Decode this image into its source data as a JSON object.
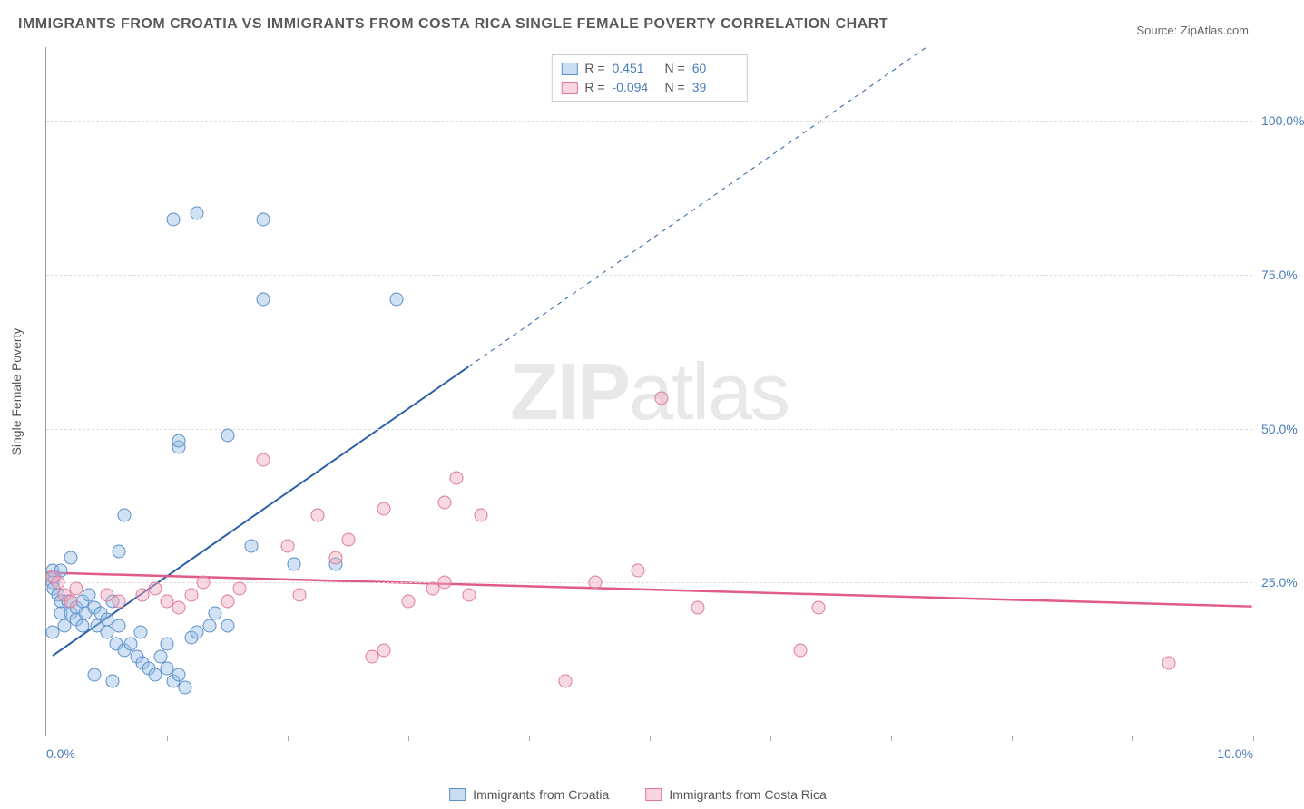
{
  "title": "IMMIGRANTS FROM CROATIA VS IMMIGRANTS FROM COSTA RICA SINGLE FEMALE POVERTY CORRELATION CHART",
  "source": "Source: ZipAtlas.com",
  "ylabel": "Single Female Poverty",
  "watermark_a": "ZIP",
  "watermark_b": "atlas",
  "chart": {
    "type": "scatter",
    "xlim": [
      0,
      10
    ],
    "ylim": [
      0,
      112
    ],
    "yticks": [
      25,
      50,
      75,
      100
    ],
    "ytick_labels": [
      "25.0%",
      "50.0%",
      "75.0%",
      "100.0%"
    ],
    "xticks": [
      0,
      10
    ],
    "xtick_labels": [
      "0.0%",
      "10.0%"
    ],
    "xminor_step": 1,
    "background": "#ffffff",
    "grid_color": "#dddddd",
    "axis_color": "#999999",
    "point_radius": 7.5,
    "series": [
      {
        "name": "Immigrants from Croatia",
        "color_fill": "rgba(150,190,230,0.45)",
        "color_stroke": "#5b8fc9",
        "r": 0.451,
        "n": 60,
        "trend": {
          "x1": 0.05,
          "y1": 13,
          "x2": 3.5,
          "y2": 60,
          "dash_x1": 3.5,
          "dash_y1": 60,
          "dash_x2": 7.3,
          "dash_y2": 112,
          "stroke": "#2b5fa8",
          "width": 2
        },
        "points": [
          [
            0.05,
            25
          ],
          [
            0.06,
            24
          ],
          [
            0.07,
            26
          ],
          [
            0.1,
            23
          ],
          [
            0.12,
            20
          ],
          [
            0.12,
            22
          ],
          [
            0.15,
            18
          ],
          [
            0.05,
            17
          ],
          [
            0.05,
            27
          ],
          [
            0.12,
            27
          ],
          [
            0.18,
            22
          ],
          [
            0.2,
            20
          ],
          [
            0.25,
            21
          ],
          [
            0.25,
            19
          ],
          [
            0.3,
            22
          ],
          [
            0.3,
            18
          ],
          [
            0.32,
            20
          ],
          [
            0.2,
            29
          ],
          [
            0.35,
            23
          ],
          [
            0.4,
            21
          ],
          [
            0.42,
            18
          ],
          [
            0.45,
            20
          ],
          [
            0.5,
            17
          ],
          [
            0.5,
            19
          ],
          [
            0.55,
            22
          ],
          [
            0.58,
            15
          ],
          [
            0.6,
            18
          ],
          [
            0.65,
            14
          ],
          [
            0.7,
            15
          ],
          [
            0.75,
            13
          ],
          [
            0.78,
            17
          ],
          [
            0.8,
            12
          ],
          [
            0.85,
            11
          ],
          [
            0.9,
            10
          ],
          [
            0.95,
            13
          ],
          [
            1.0,
            11
          ],
          [
            1.0,
            15
          ],
          [
            1.05,
            9
          ],
          [
            1.1,
            10
          ],
          [
            1.15,
            8
          ],
          [
            1.2,
            16
          ],
          [
            1.25,
            17
          ],
          [
            1.35,
            18
          ],
          [
            1.4,
            20
          ],
          [
            1.5,
            18
          ],
          [
            1.7,
            31
          ],
          [
            2.05,
            28
          ],
          [
            2.4,
            28
          ],
          [
            0.6,
            30
          ],
          [
            0.65,
            36
          ],
          [
            1.1,
            47
          ],
          [
            1.1,
            48
          ],
          [
            1.5,
            49
          ],
          [
            1.8,
            71
          ],
          [
            1.05,
            84
          ],
          [
            1.25,
            85
          ],
          [
            1.8,
            84
          ],
          [
            2.9,
            71
          ],
          [
            0.4,
            10
          ],
          [
            0.55,
            9
          ]
        ]
      },
      {
        "name": "Immigrants from Costa Rica",
        "color_fill": "rgba(240,170,190,0.45)",
        "color_stroke": "#dd7a9a",
        "r": -0.094,
        "n": 39,
        "trend": {
          "x1": 0,
          "y1": 26.5,
          "x2": 10,
          "y2": 21,
          "stroke": "#e05a8a",
          "width": 2.5
        },
        "points": [
          [
            0.05,
            26
          ],
          [
            0.1,
            25
          ],
          [
            0.15,
            23
          ],
          [
            0.2,
            22
          ],
          [
            0.25,
            24
          ],
          [
            0.5,
            23
          ],
          [
            0.6,
            22
          ],
          [
            0.8,
            23
          ],
          [
            0.9,
            24
          ],
          [
            1.0,
            22
          ],
          [
            1.1,
            21
          ],
          [
            1.2,
            23
          ],
          [
            1.3,
            25
          ],
          [
            1.5,
            22
          ],
          [
            1.6,
            24
          ],
          [
            1.8,
            45
          ],
          [
            2.0,
            31
          ],
          [
            2.1,
            23
          ],
          [
            2.25,
            36
          ],
          [
            2.4,
            29
          ],
          [
            2.5,
            32
          ],
          [
            2.7,
            13
          ],
          [
            2.8,
            37
          ],
          [
            2.8,
            14
          ],
          [
            3.0,
            22
          ],
          [
            3.2,
            24
          ],
          [
            3.3,
            38
          ],
          [
            3.3,
            25
          ],
          [
            3.4,
            42
          ],
          [
            3.5,
            23
          ],
          [
            3.6,
            36
          ],
          [
            4.3,
            9
          ],
          [
            4.55,
            25
          ],
          [
            4.9,
            27
          ],
          [
            5.1,
            55
          ],
          [
            5.4,
            21
          ],
          [
            6.25,
            14
          ],
          [
            6.4,
            21
          ],
          [
            9.3,
            12
          ]
        ]
      }
    ]
  },
  "rn_box": {
    "r_label": "R =",
    "n_label": "N ="
  },
  "legend": [
    {
      "label": "Immigrants from Croatia",
      "series": 0
    },
    {
      "label": "Immigrants from Costa Rica",
      "series": 1
    }
  ]
}
